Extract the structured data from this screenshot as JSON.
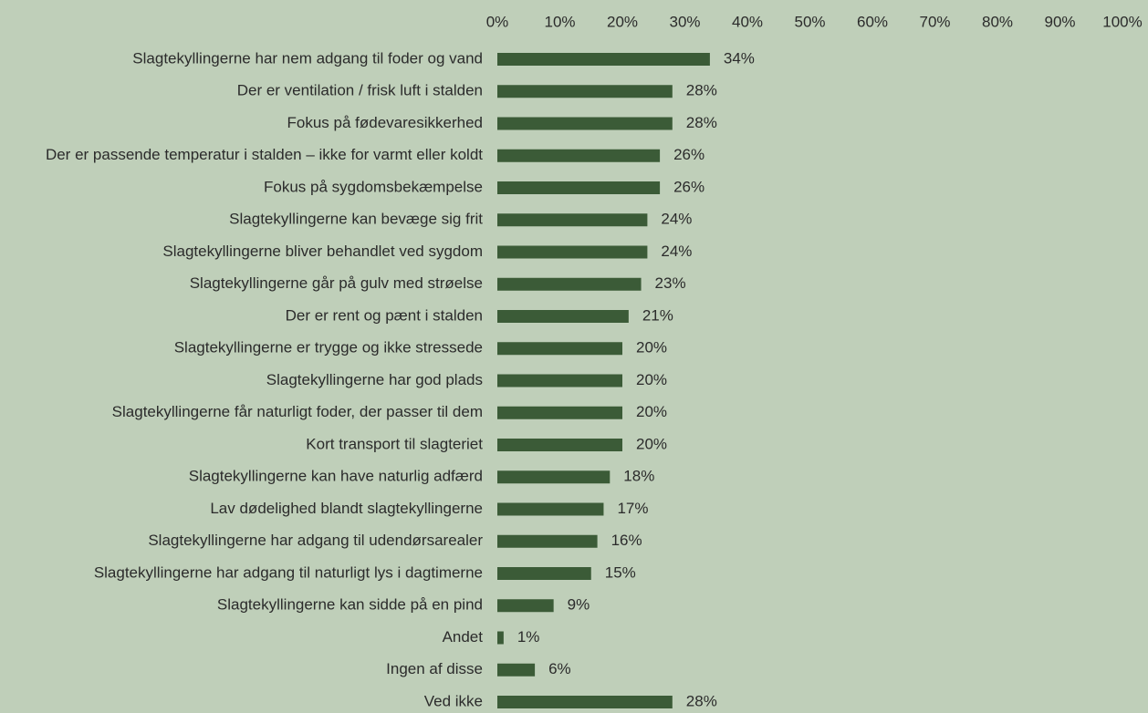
{
  "chart_data": {
    "type": "bar",
    "orientation": "horizontal",
    "color": "#3b5b37",
    "categories": [
      "Slagtekyllingerne har nem adgang til foder og vand",
      "Der er ventilation / frisk luft i stalden",
      "Fokus på fødevaresikkerhed",
      "Der er passende temperatur i stalden – ikke for varmt eller koldt",
      "Fokus på sygdomsbekæmpelse",
      "Slagtekyllingerne kan bevæge sig frit",
      "Slagtekyllingerne bliver behandlet ved sygdom",
      "Slagtekyllingerne går på gulv med strøelse",
      "Der er rent og pænt i stalden",
      "Slagtekyllingerne er trygge og ikke stressede",
      "Slagtekyllingerne har god plads",
      "Slagtekyllingerne får naturligt foder, der passer til dem",
      "Kort transport til slagteriet",
      "Slagtekyllingerne kan have naturlig adfærd",
      "Lav dødelighed blandt slagtekyllingerne",
      "Slagtekyllingerne har adgang til udendørsarealer",
      "Slagtekyllingerne har adgang til naturligt lys i dagtimerne",
      "Slagtekyllingerne kan sidde på en pind",
      "Andet",
      "Ingen af disse",
      "Ved ikke"
    ],
    "values": [
      34,
      28,
      28,
      26,
      26,
      24,
      24,
      23,
      21,
      20,
      20,
      20,
      20,
      18,
      17,
      16,
      15,
      9,
      1,
      6,
      28
    ],
    "value_labels": [
      "34%",
      "28%",
      "28%",
      "26%",
      "26%",
      "24%",
      "24%",
      "23%",
      "21%",
      "20%",
      "20%",
      "20%",
      "20%",
      "18%",
      "17%",
      "16%",
      "15%",
      "9%",
      "1%",
      "6%",
      "28%"
    ],
    "xlim": [
      0,
      100
    ],
    "xticks": [
      {
        "value": 0,
        "label": "0%"
      },
      {
        "value": 10,
        "label": "10%"
      },
      {
        "value": 20,
        "label": "20%"
      },
      {
        "value": 30,
        "label": "30%"
      },
      {
        "value": 40,
        "label": "40%"
      },
      {
        "value": 50,
        "label": "50%"
      },
      {
        "value": 60,
        "label": "60%"
      },
      {
        "value": 70,
        "label": "70%"
      },
      {
        "value": 80,
        "label": "80%"
      },
      {
        "value": 90,
        "label": "90%"
      },
      {
        "value": 100,
        "label": "100%"
      }
    ]
  }
}
